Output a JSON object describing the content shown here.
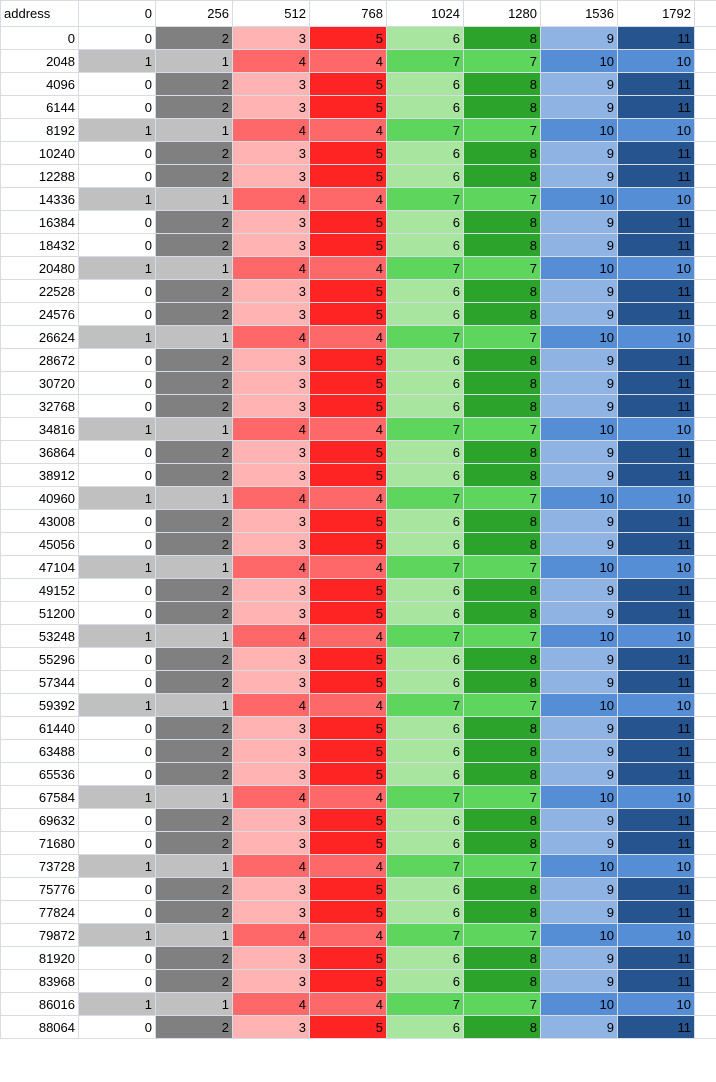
{
  "table": {
    "header": [
      "address",
      0,
      256,
      512,
      768,
      1024,
      1280,
      1536,
      1792
    ],
    "cell_colors": [
      "#ffffff",
      "#c0c0c0",
      "#808080",
      "#ffb3b3",
      "#ff6868",
      "#ff2424",
      "#a8e6a0",
      "#5ed65e",
      "#2ca42c",
      "#8fb4e3",
      "#558ed5",
      "#26548f"
    ],
    "rows": [
      [
        0,
        0,
        2,
        3,
        5,
        6,
        8,
        9,
        11
      ],
      [
        2048,
        1,
        1,
        4,
        4,
        7,
        7,
        10,
        10
      ],
      [
        4096,
        0,
        2,
        3,
        5,
        6,
        8,
        9,
        11
      ],
      [
        6144,
        0,
        2,
        3,
        5,
        6,
        8,
        9,
        11
      ],
      [
        8192,
        1,
        1,
        4,
        4,
        7,
        7,
        10,
        10
      ],
      [
        10240,
        0,
        2,
        3,
        5,
        6,
        8,
        9,
        11
      ],
      [
        12288,
        0,
        2,
        3,
        5,
        6,
        8,
        9,
        11
      ],
      [
        14336,
        1,
        1,
        4,
        4,
        7,
        7,
        10,
        10
      ],
      [
        16384,
        0,
        2,
        3,
        5,
        6,
        8,
        9,
        11
      ],
      [
        18432,
        0,
        2,
        3,
        5,
        6,
        8,
        9,
        11
      ],
      [
        20480,
        1,
        1,
        4,
        4,
        7,
        7,
        10,
        10
      ],
      [
        22528,
        0,
        2,
        3,
        5,
        6,
        8,
        9,
        11
      ],
      [
        24576,
        0,
        2,
        3,
        5,
        6,
        8,
        9,
        11
      ],
      [
        26624,
        1,
        1,
        4,
        4,
        7,
        7,
        10,
        10
      ],
      [
        28672,
        0,
        2,
        3,
        5,
        6,
        8,
        9,
        11
      ],
      [
        30720,
        0,
        2,
        3,
        5,
        6,
        8,
        9,
        11
      ],
      [
        32768,
        0,
        2,
        3,
        5,
        6,
        8,
        9,
        11
      ],
      [
        34816,
        1,
        1,
        4,
        4,
        7,
        7,
        10,
        10
      ],
      [
        36864,
        0,
        2,
        3,
        5,
        6,
        8,
        9,
        11
      ],
      [
        38912,
        0,
        2,
        3,
        5,
        6,
        8,
        9,
        11
      ],
      [
        40960,
        1,
        1,
        4,
        4,
        7,
        7,
        10,
        10
      ],
      [
        43008,
        0,
        2,
        3,
        5,
        6,
        8,
        9,
        11
      ],
      [
        45056,
        0,
        2,
        3,
        5,
        6,
        8,
        9,
        11
      ],
      [
        47104,
        1,
        1,
        4,
        4,
        7,
        7,
        10,
        10
      ],
      [
        49152,
        0,
        2,
        3,
        5,
        6,
        8,
        9,
        11
      ],
      [
        51200,
        0,
        2,
        3,
        5,
        6,
        8,
        9,
        11
      ],
      [
        53248,
        1,
        1,
        4,
        4,
        7,
        7,
        10,
        10
      ],
      [
        55296,
        0,
        2,
        3,
        5,
        6,
        8,
        9,
        11
      ],
      [
        57344,
        0,
        2,
        3,
        5,
        6,
        8,
        9,
        11
      ],
      [
        59392,
        1,
        1,
        4,
        4,
        7,
        7,
        10,
        10
      ],
      [
        61440,
        0,
        2,
        3,
        5,
        6,
        8,
        9,
        11
      ],
      [
        63488,
        0,
        2,
        3,
        5,
        6,
        8,
        9,
        11
      ],
      [
        65536,
        0,
        2,
        3,
        5,
        6,
        8,
        9,
        11
      ],
      [
        67584,
        1,
        1,
        4,
        4,
        7,
        7,
        10,
        10
      ],
      [
        69632,
        0,
        2,
        3,
        5,
        6,
        8,
        9,
        11
      ],
      [
        71680,
        0,
        2,
        3,
        5,
        6,
        8,
        9,
        11
      ],
      [
        73728,
        1,
        1,
        4,
        4,
        7,
        7,
        10,
        10
      ],
      [
        75776,
        0,
        2,
        3,
        5,
        6,
        8,
        9,
        11
      ],
      [
        77824,
        0,
        2,
        3,
        5,
        6,
        8,
        9,
        11
      ],
      [
        79872,
        1,
        1,
        4,
        4,
        7,
        7,
        10,
        10
      ],
      [
        81920,
        0,
        2,
        3,
        5,
        6,
        8,
        9,
        11
      ],
      [
        83968,
        0,
        2,
        3,
        5,
        6,
        8,
        9,
        11
      ],
      [
        86016,
        1,
        1,
        4,
        4,
        7,
        7,
        10,
        10
      ],
      [
        88064,
        0,
        2,
        3,
        5,
        6,
        8,
        9,
        11
      ]
    ]
  }
}
